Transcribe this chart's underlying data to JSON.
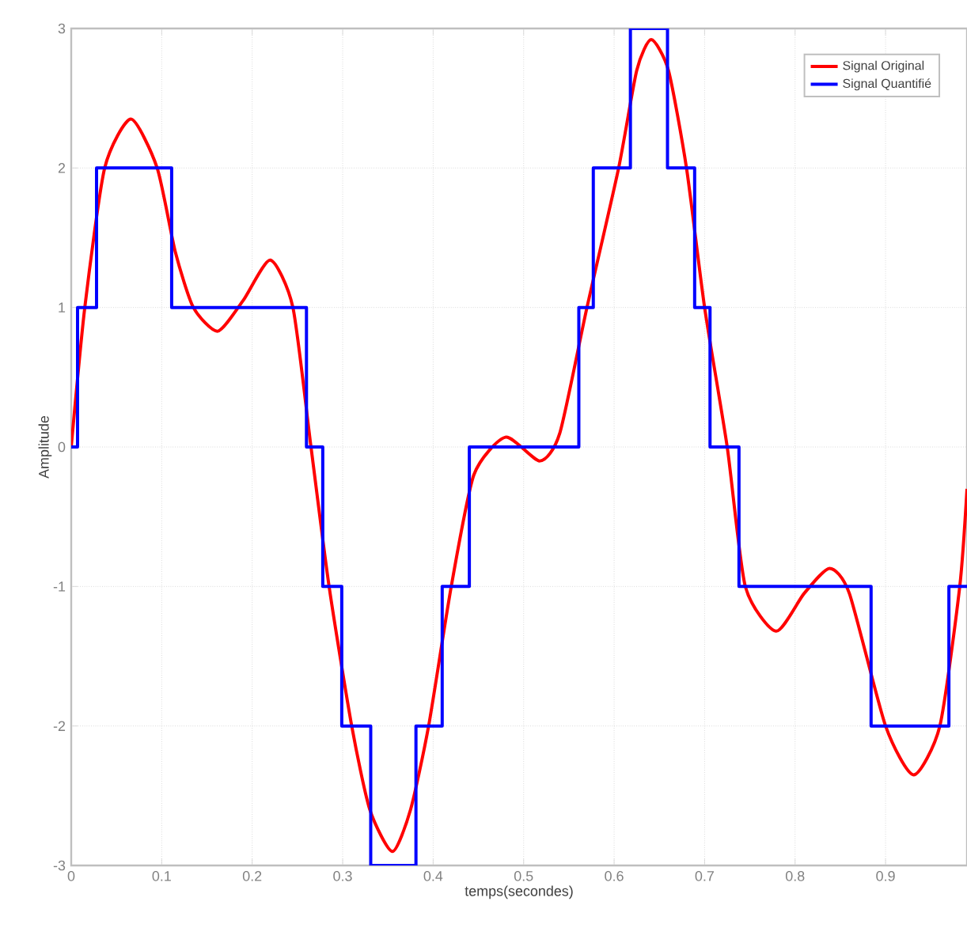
{
  "chart_data": {
    "type": "line",
    "xlabel": "temps(secondes)",
    "ylabel": "Amplitude",
    "xlim": [
      0,
      0.99
    ],
    "ylim": [
      -3,
      3
    ],
    "xticks": [
      0,
      0.1,
      0.2,
      0.3,
      0.4,
      0.5,
      0.6,
      0.7,
      0.8,
      0.9
    ],
    "yticks": [
      -3,
      -2,
      -1,
      0,
      1,
      2,
      3
    ],
    "grid": true,
    "legend": "top right",
    "series": [
      {
        "name": "Signal Original",
        "color": "#ff0000",
        "x": [
          0,
          0.015,
          0.037,
          0.066,
          0.095,
          0.115,
          0.135,
          0.162,
          0.19,
          0.22,
          0.245,
          0.265,
          0.285,
          0.31,
          0.33,
          0.355,
          0.375,
          0.395,
          0.42,
          0.445,
          0.48,
          0.518,
          0.54,
          0.57,
          0.605,
          0.625,
          0.641,
          0.66,
          0.68,
          0.7,
          0.725,
          0.745,
          0.779,
          0.81,
          0.838,
          0.86,
          0.9,
          0.931,
          0.96,
          0.982,
          0.99
        ],
        "values": [
          0,
          1,
          2,
          2.35,
          2,
          1.4,
          1.0,
          0.83,
          1.05,
          1.34,
          1.0,
          0,
          -1,
          -2,
          -2.6,
          -2.9,
          -2.6,
          -2,
          -1,
          -0.2,
          0.07,
          -0.1,
          0.1,
          1,
          2,
          2.7,
          2.92,
          2.7,
          2,
          1,
          0,
          -1,
          -1.32,
          -1.05,
          -0.87,
          -1.05,
          -2,
          -2.35,
          -2,
          -1,
          -0.3
        ]
      },
      {
        "name": "Signal Quantifié",
        "type": "step",
        "color": "#0000ff",
        "x": [
          0,
          0.007,
          0.028,
          0.111,
          0.26,
          0.278,
          0.299,
          0.331,
          0.381,
          0.41,
          0.44,
          0.561,
          0.577,
          0.618,
          0.659,
          0.689,
          0.706,
          0.738,
          0.884,
          0.97,
          0.99
        ],
        "values": [
          0,
          1,
          2,
          1,
          0,
          -1,
          -2,
          -3,
          -2,
          -1,
          0,
          1,
          2,
          3,
          2,
          1,
          0,
          -1,
          -2,
          -1,
          -1
        ]
      }
    ]
  }
}
